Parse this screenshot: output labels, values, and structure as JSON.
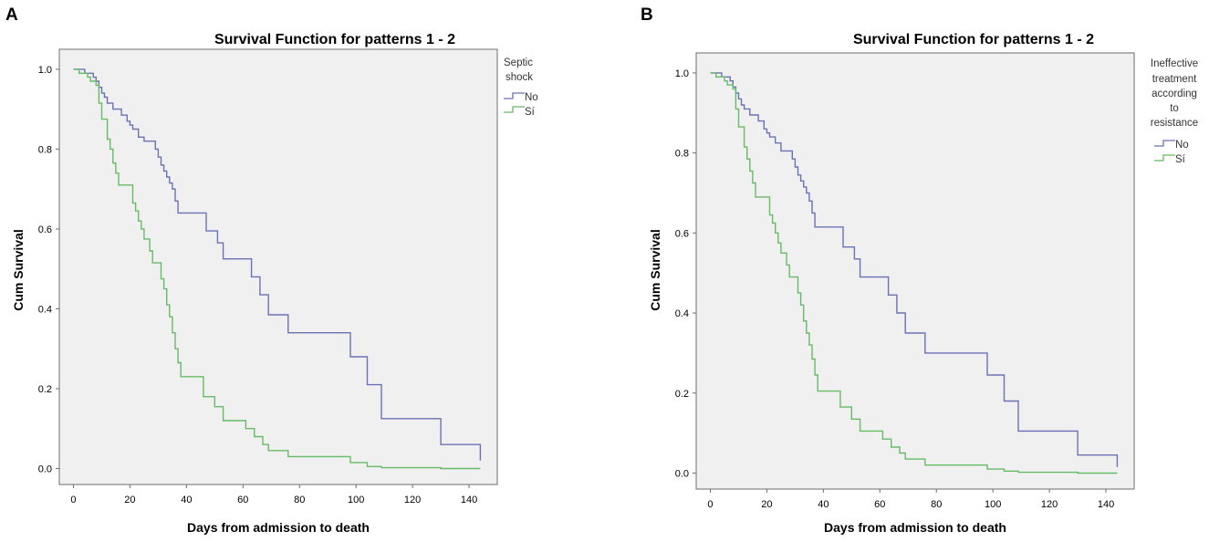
{
  "chart_data": [
    {
      "type": "line",
      "panel": "A",
      "title": "Survival Function for patterns 1 - 2",
      "xlabel": "Days from admission to death",
      "ylabel": "Cum Survival",
      "xlim": [
        -5,
        150
      ],
      "ylim": [
        -0.04,
        1.05
      ],
      "xticks": [
        0,
        20,
        40,
        60,
        80,
        100,
        120,
        140
      ],
      "yticks": [
        0.0,
        0.2,
        0.4,
        0.6,
        0.8,
        1.0
      ],
      "ytick_labels": [
        "0.0",
        "0.2",
        "0.4",
        "0.6",
        "0.8",
        "1.0"
      ],
      "grid": false,
      "legend_title_lines": [
        "Septic",
        "shock"
      ],
      "legend_position": "right",
      "series": [
        {
          "name": "No",
          "color": "#6b72b4",
          "steps": [
            [
              0,
              1.0
            ],
            [
              4,
              0.99
            ],
            [
              7,
              0.98
            ],
            [
              8,
              0.97
            ],
            [
              9,
              0.955
            ],
            [
              10,
              0.94
            ],
            [
              11,
              0.93
            ],
            [
              12,
              0.915
            ],
            [
              14,
              0.9
            ],
            [
              17,
              0.885
            ],
            [
              19,
              0.87
            ],
            [
              20,
              0.86
            ],
            [
              21,
              0.85
            ],
            [
              23,
              0.83
            ],
            [
              25,
              0.82
            ],
            [
              29,
              0.8
            ],
            [
              30,
              0.78
            ],
            [
              31,
              0.76
            ],
            [
              32,
              0.745
            ],
            [
              33,
              0.73
            ],
            [
              34,
              0.715
            ],
            [
              35,
              0.7
            ],
            [
              36,
              0.67
            ],
            [
              37,
              0.64
            ],
            [
              47,
              0.595
            ],
            [
              51,
              0.565
            ],
            [
              53,
              0.525
            ],
            [
              63,
              0.48
            ],
            [
              66,
              0.435
            ],
            [
              69,
              0.385
            ],
            [
              76,
              0.34
            ],
            [
              98,
              0.28
            ],
            [
              104,
              0.21
            ],
            [
              109,
              0.125
            ],
            [
              130,
              0.06
            ],
            [
              144,
              0.02
            ]
          ],
          "end": 144
        },
        {
          "name": "Sí",
          "color": "#66bb66",
          "steps": [
            [
              0,
              1.0
            ],
            [
              2,
              0.99
            ],
            [
              5,
              0.98
            ],
            [
              6,
              0.97
            ],
            [
              8,
              0.96
            ],
            [
              9,
              0.915
            ],
            [
              10,
              0.875
            ],
            [
              12,
              0.825
            ],
            [
              13,
              0.8
            ],
            [
              14,
              0.765
            ],
            [
              15,
              0.74
            ],
            [
              16,
              0.71
            ],
            [
              21,
              0.665
            ],
            [
              22,
              0.645
            ],
            [
              23,
              0.62
            ],
            [
              24,
              0.6
            ],
            [
              25,
              0.575
            ],
            [
              27,
              0.545
            ],
            [
              28,
              0.515
            ],
            [
              31,
              0.475
            ],
            [
              32,
              0.45
            ],
            [
              33,
              0.41
            ],
            [
              34,
              0.38
            ],
            [
              35,
              0.34
            ],
            [
              36,
              0.3
            ],
            [
              37,
              0.265
            ],
            [
              38,
              0.23
            ],
            [
              46,
              0.18
            ],
            [
              50,
              0.155
            ],
            [
              53,
              0.12
            ],
            [
              61,
              0.1
            ],
            [
              64,
              0.08
            ],
            [
              67,
              0.06
            ],
            [
              69,
              0.045
            ],
            [
              76,
              0.03
            ],
            [
              98,
              0.015
            ],
            [
              104,
              0.005
            ],
            [
              109,
              0.002
            ],
            [
              130,
              0.0
            ]
          ],
          "end": 144
        }
      ]
    },
    {
      "type": "line",
      "panel": "B",
      "title": "Survival Function for patterns 1 - 2",
      "xlabel": "Days from admission to death",
      "ylabel": "Cum Survival",
      "xlim": [
        -5,
        150
      ],
      "ylim": [
        -0.04,
        1.05
      ],
      "xticks": [
        0,
        20,
        40,
        60,
        80,
        100,
        120,
        140
      ],
      "yticks": [
        0.0,
        0.2,
        0.4,
        0.6,
        0.8,
        1.0
      ],
      "ytick_labels": [
        "0.0",
        "0.2",
        "0.4",
        "0.6",
        "0.8",
        "1.0"
      ],
      "grid": false,
      "legend_title_lines": [
        "Ineffective",
        "treatment",
        "according",
        "to",
        "resistance"
      ],
      "legend_position": "right",
      "series": [
        {
          "name": "No",
          "color": "#6b72b4",
          "steps": [
            [
              0,
              1.0
            ],
            [
              4,
              0.99
            ],
            [
              7,
              0.98
            ],
            [
              8,
              0.965
            ],
            [
              9,
              0.95
            ],
            [
              10,
              0.935
            ],
            [
              11,
              0.92
            ],
            [
              12,
              0.91
            ],
            [
              14,
              0.895
            ],
            [
              17,
              0.88
            ],
            [
              19,
              0.86
            ],
            [
              20,
              0.85
            ],
            [
              21,
              0.84
            ],
            [
              23,
              0.825
            ],
            [
              25,
              0.805
            ],
            [
              29,
              0.785
            ],
            [
              30,
              0.765
            ],
            [
              31,
              0.745
            ],
            [
              32,
              0.73
            ],
            [
              33,
              0.715
            ],
            [
              34,
              0.7
            ],
            [
              35,
              0.68
            ],
            [
              36,
              0.65
            ],
            [
              37,
              0.615
            ],
            [
              47,
              0.565
            ],
            [
              51,
              0.535
            ],
            [
              53,
              0.49
            ],
            [
              63,
              0.445
            ],
            [
              66,
              0.4
            ],
            [
              69,
              0.35
            ],
            [
              76,
              0.3
            ],
            [
              98,
              0.245
            ],
            [
              104,
              0.18
            ],
            [
              109,
              0.105
            ],
            [
              130,
              0.045
            ],
            [
              144,
              0.015
            ]
          ],
          "end": 144
        },
        {
          "name": "Sí",
          "color": "#66bb66",
          "steps": [
            [
              0,
              1.0
            ],
            [
              2,
              0.99
            ],
            [
              5,
              0.98
            ],
            [
              6,
              0.97
            ],
            [
              8,
              0.96
            ],
            [
              9,
              0.91
            ],
            [
              10,
              0.865
            ],
            [
              12,
              0.815
            ],
            [
              13,
              0.785
            ],
            [
              14,
              0.755
            ],
            [
              15,
              0.725
            ],
            [
              16,
              0.69
            ],
            [
              21,
              0.645
            ],
            [
              22,
              0.625
            ],
            [
              23,
              0.6
            ],
            [
              24,
              0.575
            ],
            [
              25,
              0.55
            ],
            [
              27,
              0.52
            ],
            [
              28,
              0.49
            ],
            [
              31,
              0.45
            ],
            [
              32,
              0.42
            ],
            [
              33,
              0.38
            ],
            [
              34,
              0.35
            ],
            [
              35,
              0.32
            ],
            [
              36,
              0.285
            ],
            [
              37,
              0.245
            ],
            [
              38,
              0.205
            ],
            [
              46,
              0.165
            ],
            [
              50,
              0.135
            ],
            [
              53,
              0.105
            ],
            [
              61,
              0.085
            ],
            [
              64,
              0.065
            ],
            [
              67,
              0.05
            ],
            [
              69,
              0.035
            ],
            [
              76,
              0.02
            ],
            [
              98,
              0.01
            ],
            [
              104,
              0.005
            ],
            [
              109,
              0.002
            ],
            [
              130,
              0.0
            ]
          ],
          "end": 144
        }
      ]
    }
  ]
}
